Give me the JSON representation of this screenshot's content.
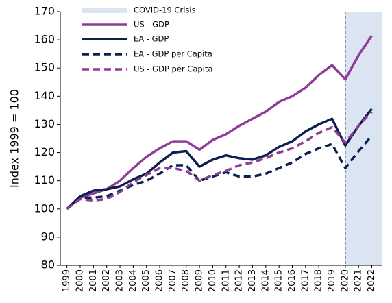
{
  "chart_data": {
    "type": "line",
    "ylabel": "Index 1999 = 100",
    "x": [
      1999,
      2000,
      2001,
      2002,
      2003,
      2004,
      2005,
      2006,
      2007,
      2008,
      2009,
      2010,
      2011,
      2012,
      2013,
      2014,
      2015,
      2016,
      2017,
      2018,
      2019,
      2020,
      2021,
      2022
    ],
    "xlim": [
      1998.5,
      2022.8
    ],
    "ylim": [
      80,
      170
    ],
    "yticks": [
      80,
      90,
      100,
      110,
      120,
      130,
      140,
      150,
      160,
      170
    ],
    "shade": {
      "name": "COVID-19 Crisis",
      "start": 2020,
      "color": "#dbe4f1"
    },
    "series": [
      {
        "name": "US - GDP",
        "color": "#8e3c96",
        "dashed": false,
        "values": [
          100,
          104,
          105.5,
          107,
          110,
          114.5,
          118.5,
          121.5,
          124,
          124,
          121,
          124.5,
          126.5,
          129.5,
          132,
          134.5,
          138,
          140,
          143,
          147.5,
          151,
          146,
          154.5,
          161.5
        ]
      },
      {
        "name": "EA - GDP",
        "color": "#0c1f4f",
        "dashed": false,
        "values": [
          100,
          104.5,
          106.5,
          107,
          108,
          110.5,
          112.5,
          116.5,
          120,
          120.5,
          115,
          117.5,
          119,
          118,
          117.5,
          119,
          122,
          124,
          127.5,
          130,
          132,
          122.5,
          129.5,
          135.5
        ]
      },
      {
        "name": "EA - GDP per Capita",
        "color": "#0c1f4f",
        "dashed": true,
        "values": [
          100,
          104,
          104,
          104.5,
          106.5,
          108.5,
          110,
          112.5,
          115.5,
          115.5,
          110,
          111.5,
          113,
          111.5,
          111.5,
          112.5,
          114.5,
          116.5,
          119.5,
          121.5,
          123,
          114.5,
          120.5,
          126
        ]
      },
      {
        "name": "US - GDP per Capita",
        "color": "#8e3c96",
        "dashed": true,
        "values": [
          100,
          103.5,
          103,
          103.5,
          106,
          109.5,
          112,
          114.5,
          114.5,
          113.5,
          110,
          112,
          113.5,
          115.5,
          116.5,
          118,
          120,
          121.5,
          124,
          127,
          129,
          123.5,
          129.5,
          134.5
        ]
      }
    ]
  }
}
